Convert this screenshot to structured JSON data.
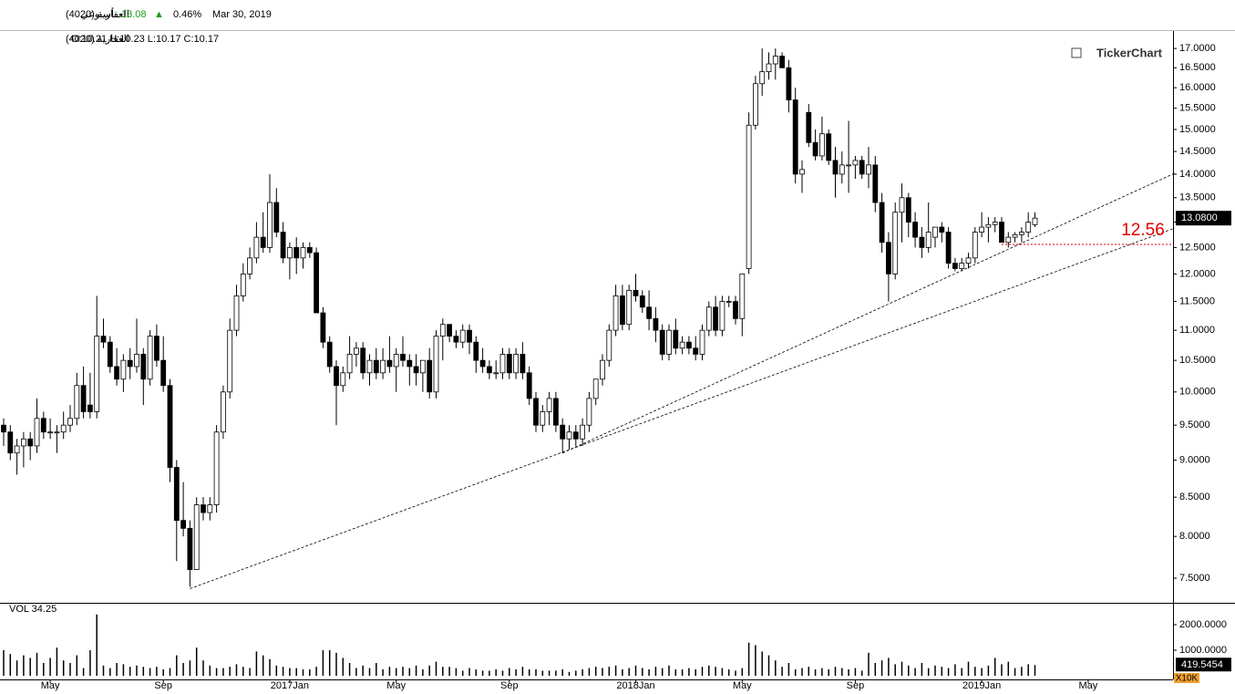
{
  "header": {
    "name": "العقارية (4020)",
    "period": "أسبوعي",
    "price": "13.08",
    "arrow": "▲",
    "change": "0.46%",
    "date": "Mar 30, 2019"
  },
  "info": {
    "name": "العقارية (4020)",
    "ohlc": "O:10.21 H:10.23 L:10.17 C:10.17"
  },
  "chart_data": {
    "type": "candlestick",
    "logo": "TickerChart",
    "log_scale": true,
    "up_color": "#ffffff",
    "down_color": "#000000",
    "categories": [
      null,
      null,
      null,
      null,
      null,
      null,
      null,
      "May",
      null,
      null,
      null,
      null,
      null,
      null,
      null,
      null,
      null,
      null,
      null,
      null,
      null,
      null,
      null,
      null,
      "Sep",
      null,
      null,
      null,
      null,
      null,
      null,
      null,
      null,
      null,
      null,
      null,
      null,
      null,
      null,
      null,
      null,
      null,
      null,
      "2017Jan",
      null,
      null,
      null,
      null,
      null,
      null,
      null,
      null,
      null,
      null,
      null,
      null,
      null,
      null,
      null,
      "May",
      null,
      null,
      null,
      null,
      null,
      null,
      null,
      null,
      null,
      null,
      null,
      null,
      null,
      null,
      null,
      null,
      "Sep",
      null,
      null,
      null,
      null,
      null,
      null,
      null,
      null,
      null,
      null,
      null,
      null,
      null,
      null,
      null,
      null,
      null,
      null,
      "2018Jan",
      null,
      null,
      null,
      null,
      null,
      null,
      null,
      null,
      null,
      null,
      null,
      null,
      null,
      null,
      null,
      "May",
      null,
      null,
      null,
      null,
      null,
      null,
      null,
      null,
      null,
      null,
      null,
      null,
      null,
      null,
      null,
      null,
      "Sep",
      null,
      null,
      null,
      null,
      null,
      null,
      null,
      null,
      null,
      null,
      null,
      null,
      null,
      null,
      null,
      null,
      null,
      null,
      "2019Jan",
      null,
      null,
      null,
      null,
      null,
      null,
      null,
      null,
      null,
      null,
      null,
      null,
      null,
      null,
      null,
      "May"
    ],
    "candles": [
      [
        9.5,
        9.6,
        9.2,
        9.4
      ],
      [
        9.4,
        9.5,
        9.0,
        9.1
      ],
      [
        9.1,
        9.3,
        8.8,
        9.2
      ],
      [
        9.2,
        9.4,
        8.9,
        9.3
      ],
      [
        9.3,
        9.4,
        9.0,
        9.2
      ],
      [
        9.2,
        9.9,
        9.1,
        9.6
      ],
      [
        9.6,
        9.7,
        9.3,
        9.4
      ],
      [
        9.4,
        9.6,
        9.3,
        9.4
      ],
      [
        9.4,
        9.5,
        9.1,
        9.4
      ],
      [
        9.4,
        9.7,
        9.3,
        9.5
      ],
      [
        9.5,
        9.8,
        9.4,
        9.6
      ],
      [
        9.6,
        10.3,
        9.5,
        10.1
      ],
      [
        10.1,
        10.4,
        9.6,
        9.7
      ],
      [
        9.8,
        10.3,
        9.6,
        9.7
      ],
      [
        9.7,
        11.6,
        9.6,
        10.9
      ],
      [
        10.9,
        11.2,
        10.7,
        10.8
      ],
      [
        10.8,
        10.9,
        10.3,
        10.4
      ],
      [
        10.4,
        10.7,
        10.1,
        10.2
      ],
      [
        10.2,
        10.6,
        10.0,
        10.5
      ],
      [
        10.5,
        10.7,
        10.2,
        10.4
      ],
      [
        10.4,
        11.2,
        10.3,
        10.6
      ],
      [
        10.6,
        10.7,
        9.8,
        10.2
      ],
      [
        10.2,
        11.0,
        10.1,
        10.9
      ],
      [
        10.9,
        11.1,
        10.4,
        10.5
      ],
      [
        10.5,
        10.9,
        10.0,
        10.1
      ],
      [
        10.1,
        10.2,
        8.7,
        8.9
      ],
      [
        8.9,
        9.0,
        7.7,
        8.2
      ],
      [
        8.2,
        8.7,
        8.0,
        8.1
      ],
      [
        8.1,
        8.2,
        7.4,
        7.6
      ],
      [
        7.6,
        8.5,
        7.6,
        8.4
      ],
      [
        8.4,
        8.5,
        8.2,
        8.3
      ],
      [
        8.3,
        8.5,
        8.2,
        8.4
      ],
      [
        8.4,
        9.5,
        8.3,
        9.4
      ],
      [
        9.4,
        10.1,
        9.3,
        10.0
      ],
      [
        10.0,
        11.2,
        9.9,
        11.0
      ],
      [
        11.0,
        11.8,
        10.9,
        11.6
      ],
      [
        11.6,
        12.2,
        11.5,
        12.0
      ],
      [
        12.0,
        12.5,
        11.9,
        12.3
      ],
      [
        12.3,
        13.0,
        12.2,
        12.7
      ],
      [
        12.7,
        13.2,
        12.4,
        12.5
      ],
      [
        12.5,
        14.0,
        12.4,
        13.4
      ],
      [
        13.4,
        13.7,
        12.7,
        12.8
      ],
      [
        12.8,
        13.0,
        12.2,
        12.3
      ],
      [
        12.3,
        12.6,
        11.9,
        12.5
      ],
      [
        12.5,
        12.7,
        12.0,
        12.3
      ],
      [
        12.3,
        12.6,
        12.1,
        12.5
      ],
      [
        12.5,
        12.6,
        12.3,
        12.4
      ],
      [
        12.4,
        12.5,
        11.3,
        11.3
      ],
      [
        11.3,
        11.4,
        10.7,
        10.8
      ],
      [
        10.8,
        10.9,
        10.3,
        10.4
      ],
      [
        10.4,
        10.5,
        9.5,
        10.1
      ],
      [
        10.1,
        10.4,
        10.0,
        10.3
      ],
      [
        10.3,
        10.9,
        10.2,
        10.6
      ],
      [
        10.6,
        10.8,
        10.4,
        10.7
      ],
      [
        10.7,
        10.8,
        10.2,
        10.3
      ],
      [
        10.3,
        10.6,
        10.1,
        10.5
      ],
      [
        10.5,
        10.7,
        10.2,
        10.3
      ],
      [
        10.3,
        10.7,
        10.2,
        10.5
      ],
      [
        10.5,
        10.9,
        10.3,
        10.4
      ],
      [
        10.4,
        10.7,
        10.0,
        10.6
      ],
      [
        10.6,
        10.9,
        10.4,
        10.5
      ],
      [
        10.5,
        10.6,
        10.1,
        10.4
      ],
      [
        10.4,
        10.6,
        10.1,
        10.3
      ],
      [
        10.3,
        10.5,
        10.0,
        10.5
      ],
      [
        10.5,
        10.7,
        9.9,
        10.0
      ],
      [
        10.0,
        11.0,
        9.9,
        10.9
      ],
      [
        10.9,
        11.2,
        10.5,
        11.1
      ],
      [
        11.1,
        11.1,
        10.8,
        10.9
      ],
      [
        10.9,
        11.0,
        10.7,
        10.8
      ],
      [
        10.8,
        11.1,
        10.7,
        11.0
      ],
      [
        11.0,
        11.1,
        10.6,
        10.8
      ],
      [
        10.8,
        10.9,
        10.3,
        10.5
      ],
      [
        10.5,
        10.7,
        10.3,
        10.4
      ],
      [
        10.4,
        10.5,
        10.2,
        10.3
      ],
      [
        10.3,
        10.5,
        10.2,
        10.3
      ],
      [
        10.3,
        10.7,
        10.2,
        10.6
      ],
      [
        10.6,
        10.7,
        10.2,
        10.3
      ],
      [
        10.3,
        10.7,
        10.2,
        10.6
      ],
      [
        10.6,
        10.8,
        10.2,
        10.3
      ],
      [
        10.3,
        10.4,
        9.8,
        9.9
      ],
      [
        9.9,
        10.0,
        9.4,
        9.5
      ],
      [
        9.5,
        9.8,
        9.4,
        9.7
      ],
      [
        9.7,
        10.0,
        9.5,
        9.9
      ],
      [
        9.9,
        10.0,
        9.4,
        9.5
      ],
      [
        9.5,
        9.6,
        9.1,
        9.3
      ],
      [
        9.3,
        9.5,
        9.15,
        9.4
      ],
      [
        9.4,
        9.5,
        9.2,
        9.3
      ],
      [
        9.3,
        9.6,
        9.2,
        9.5
      ],
      [
        9.5,
        10.0,
        9.4,
        9.9
      ],
      [
        9.9,
        10.2,
        9.8,
        10.2
      ],
      [
        10.2,
        10.6,
        10.1,
        10.5
      ],
      [
        10.5,
        11.1,
        10.4,
        11.0
      ],
      [
        11.0,
        11.8,
        10.9,
        11.6
      ],
      [
        11.6,
        11.8,
        11.0,
        11.1
      ],
      [
        11.1,
        11.8,
        11.0,
        11.7
      ],
      [
        11.7,
        12.0,
        11.5,
        11.6
      ],
      [
        11.6,
        11.7,
        11.3,
        11.4
      ],
      [
        11.4,
        11.7,
        11.0,
        11.2
      ],
      [
        11.2,
        11.4,
        10.8,
        11.0
      ],
      [
        11.0,
        11.1,
        10.5,
        10.6
      ],
      [
        10.6,
        11.1,
        10.5,
        11.0
      ],
      [
        11.0,
        11.2,
        10.6,
        10.7
      ],
      [
        10.7,
        10.9,
        10.6,
        10.8
      ],
      [
        10.8,
        10.9,
        10.6,
        10.7
      ],
      [
        10.7,
        10.9,
        10.5,
        10.6
      ],
      [
        10.6,
        11.1,
        10.5,
        11.0
      ],
      [
        11.0,
        11.5,
        10.9,
        11.4
      ],
      [
        11.4,
        11.6,
        10.9,
        11.0
      ],
      [
        11.0,
        11.6,
        10.9,
        11.5
      ],
      [
        11.5,
        11.6,
        11.4,
        11.5
      ],
      [
        11.5,
        11.6,
        11.1,
        11.2
      ],
      [
        11.2,
        12.0,
        10.9,
        12.0
      ],
      [
        12.1,
        15.4,
        12.0,
        15.1
      ],
      [
        15.1,
        16.3,
        15.0,
        16.1
      ],
      [
        16.1,
        17.0,
        15.8,
        16.4
      ],
      [
        16.4,
        16.9,
        16.2,
        16.6
      ],
      [
        16.6,
        17.0,
        16.2,
        16.8
      ],
      [
        16.8,
        16.9,
        16.5,
        16.5
      ],
      [
        16.5,
        16.7,
        15.4,
        15.7
      ],
      [
        15.7,
        16.0,
        13.8,
        14.0
      ],
      [
        14.0,
        14.3,
        13.6,
        14.1
      ],
      [
        15.4,
        15.6,
        14.6,
        14.7
      ],
      [
        14.7,
        15.0,
        14.3,
        14.4
      ],
      [
        14.4,
        15.3,
        14.3,
        14.9
      ],
      [
        14.9,
        15.0,
        14.2,
        14.3
      ],
      [
        14.3,
        14.6,
        13.5,
        14.0
      ],
      [
        14.0,
        14.5,
        13.8,
        14.2
      ],
      [
        14.2,
        15.2,
        13.6,
        14.2
      ],
      [
        14.2,
        14.4,
        13.9,
        14.3
      ],
      [
        14.3,
        14.4,
        13.9,
        14.0
      ],
      [
        14.0,
        14.6,
        13.7,
        14.2
      ],
      [
        14.2,
        14.4,
        13.2,
        13.4
      ],
      [
        13.4,
        13.6,
        12.4,
        12.6
      ],
      [
        12.6,
        12.8,
        11.5,
        12.0
      ],
      [
        12.0,
        13.4,
        11.9,
        13.2
      ],
      [
        13.2,
        13.8,
        12.6,
        13.5
      ],
      [
        13.5,
        13.6,
        12.7,
        13.0
      ],
      [
        13.0,
        13.2,
        12.5,
        12.7
      ],
      [
        12.7,
        12.9,
        12.3,
        12.5
      ],
      [
        12.5,
        13.4,
        12.4,
        12.8
      ],
      [
        12.7,
        12.9,
        12.5,
        12.9
      ],
      [
        12.9,
        13.0,
        12.6,
        12.8
      ],
      [
        12.8,
        12.9,
        12.1,
        12.2
      ],
      [
        12.2,
        12.3,
        12.05,
        12.1
      ],
      [
        12.1,
        12.3,
        12.05,
        12.2
      ],
      [
        12.2,
        12.4,
        12.1,
        12.3
      ],
      [
        12.3,
        12.9,
        12.2,
        12.8
      ],
      [
        12.8,
        13.2,
        12.7,
        12.9
      ],
      [
        12.9,
        13.1,
        12.6,
        12.95
      ],
      [
        12.95,
        13.1,
        12.8,
        13.0
      ],
      [
        13.0,
        13.1,
        12.6,
        12.6
      ],
      [
        12.6,
        12.8,
        12.5,
        12.7
      ],
      [
        12.7,
        12.8,
        12.6,
        12.75
      ],
      [
        12.75,
        12.9,
        12.6,
        12.8
      ],
      [
        12.8,
        13.2,
        12.7,
        13.0
      ],
      [
        12.95,
        13.2,
        12.9,
        13.08
      ],
      null,
      null,
      null,
      null,
      null,
      null,
      null,
      null
    ],
    "ylim": [
      7.22,
      17.44
    ],
    "yticks": [
      {
        "value": 7.5,
        "label": "7.5000"
      },
      {
        "value": 8,
        "label": "8.0000"
      },
      {
        "value": 8.5,
        "label": "8.5000"
      },
      {
        "value": 9,
        "label": "9.0000"
      },
      {
        "value": 9.5,
        "label": "9.5000"
      },
      {
        "value": 10,
        "label": "10.0000"
      },
      {
        "value": 10.5,
        "label": "10.5000"
      },
      {
        "value": 11,
        "label": "11.0000"
      },
      {
        "value": 11.5,
        "label": "11.5000"
      },
      {
        "value": 12,
        "label": "12.0000"
      },
      {
        "value": 12.5,
        "label": "12.5000"
      },
      {
        "value": 13,
        "label": "13.0000"
      },
      {
        "value": 13.5,
        "label": "13.5000"
      },
      {
        "value": 14,
        "label": "14.0000"
      },
      {
        "value": 14.5,
        "label": "14.5000"
      },
      {
        "value": 15,
        "label": "15.0000"
      },
      {
        "value": 15.5,
        "label": "15.5000"
      },
      {
        "value": 16,
        "label": "16.0000"
      },
      {
        "value": 16.5,
        "label": "16.5000"
      },
      {
        "value": 17,
        "label": "17.0000"
      }
    ],
    "last_price": {
      "value": 13.08,
      "label": "13.0800"
    },
    "trendlines": [
      {
        "from": [
          28,
          7.38
        ],
        "to": [
          176,
          12.88
        ]
      },
      {
        "from": [
          84,
          9.1
        ],
        "to": [
          176,
          14.02
        ]
      }
    ],
    "level": {
      "value": 12.56,
      "from": 150,
      "color": "#e00000"
    },
    "volume": {
      "label": "VOL 34.25",
      "unit": "X10K",
      "ylim": [
        0,
        2820
      ],
      "yticks": [
        {
          "value": 1000,
          "label": "1000.0000"
        },
        {
          "value": 2000,
          "label": "2000.0000"
        }
      ],
      "last": {
        "value": 419.5454,
        "label": "419.5454"
      },
      "values": [
        1000,
        850,
        600,
        800,
        700,
        900,
        500,
        700,
        1100,
        600,
        500,
        800,
        300,
        1000,
        2400,
        400,
        300,
        500,
        450,
        350,
        400,
        350,
        300,
        350,
        250,
        300,
        800,
        500,
        600,
        1100,
        600,
        400,
        300,
        300,
        350,
        450,
        350,
        300,
        950,
        800,
        650,
        400,
        350,
        300,
        300,
        250,
        250,
        350,
        1000,
        1000,
        900,
        700,
        500,
        300,
        400,
        300,
        500,
        250,
        350,
        300,
        350,
        300,
        400,
        250,
        400,
        550,
        350,
        350,
        300,
        200,
        300,
        250,
        200,
        200,
        250,
        200,
        300,
        250,
        350,
        250,
        250,
        200,
        200,
        200,
        250,
        150,
        200,
        250,
        300,
        350,
        300,
        350,
        400,
        250,
        300,
        400,
        300,
        250,
        350,
        300,
        400,
        250,
        250,
        300,
        250,
        350,
        400,
        350,
        300,
        250,
        200,
        300,
        1300,
        1200,
        950,
        800,
        600,
        350,
        500,
        250,
        300,
        350,
        250,
        300,
        250,
        350,
        300,
        250,
        300,
        200,
        900,
        500,
        600,
        700,
        450,
        550,
        400,
        300,
        500,
        300,
        400,
        350,
        300,
        450,
        300,
        550,
        350,
        300,
        400,
        700,
        450,
        550,
        300,
        350,
        450,
        419.5454
      ]
    }
  }
}
